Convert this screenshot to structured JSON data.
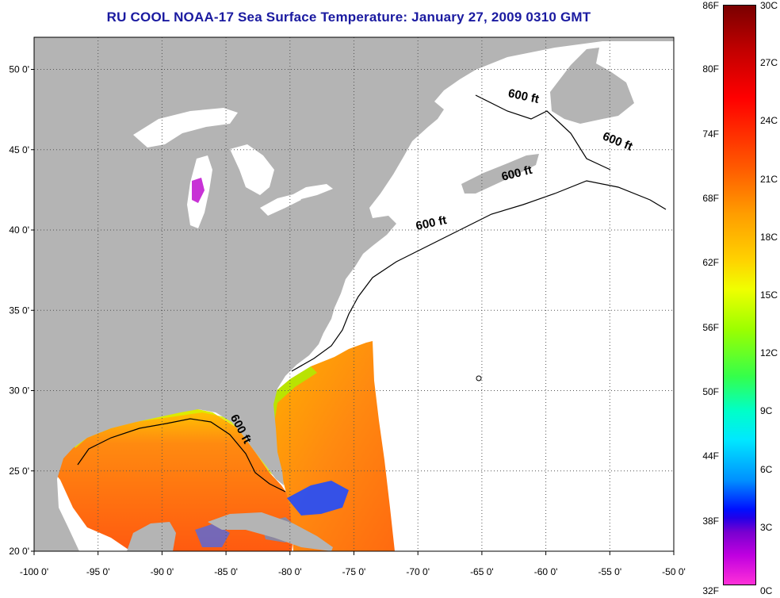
{
  "title": "RU COOL  NOAA-17  Sea Surface Temperature:  January 27, 2009 0310 GMT",
  "map": {
    "lon_min": -100,
    "lon_max": -50,
    "lat_min": 20,
    "lat_max": 52,
    "lon_ticks": [
      {
        "value": -100,
        "label": "-100 0'"
      },
      {
        "value": -95,
        "label": "-95 0'"
      },
      {
        "value": -90,
        "label": "-90 0'"
      },
      {
        "value": -85,
        "label": "-85 0'"
      },
      {
        "value": -80,
        "label": "-80 0'"
      },
      {
        "value": -75,
        "label": "-75 0'"
      },
      {
        "value": -70,
        "label": "-70 0'"
      },
      {
        "value": -65,
        "label": "-65 0'"
      },
      {
        "value": -60,
        "label": "-60 0'"
      },
      {
        "value": -55,
        "label": "-55 0'"
      },
      {
        "value": -50,
        "label": "-50 0'"
      }
    ],
    "lat_ticks": [
      {
        "value": 20,
        "label": "20 0'"
      },
      {
        "value": 25,
        "label": "25 0'"
      },
      {
        "value": 30,
        "label": "30 0'"
      },
      {
        "value": 35,
        "label": "35 0'"
      },
      {
        "value": 40,
        "label": "40 0'"
      },
      {
        "value": 45,
        "label": "45 0'"
      },
      {
        "value": 50,
        "label": "50 0'"
      }
    ],
    "contour_labels": [
      {
        "text": "600 ft",
        "lon": -61.8,
        "lat": 48.1,
        "angle": 12
      },
      {
        "text": "600 ft",
        "lon": -54.5,
        "lat": 45.3,
        "angle": 22
      },
      {
        "text": "600 ft",
        "lon": -62.2,
        "lat": 43.3,
        "angle": -14
      },
      {
        "text": "600 ft",
        "lon": -68.9,
        "lat": 40.2,
        "angle": -12
      },
      {
        "text": "600 ft",
        "lon": -84.1,
        "lat": 27.5,
        "angle": 62
      }
    ],
    "colors": {
      "land": "#b4b4b4",
      "ocean": "#ffffff",
      "sst_warm": "#ff6a10",
      "sst_mid": "#ffb000",
      "sst_cool": "#1f4bff",
      "lake_michigan_sst": "#c832d6"
    }
  },
  "colorbar": {
    "fahrenheit": [
      "86F",
      "80F",
      "74F",
      "68F",
      "62F",
      "56F",
      "50F",
      "44F",
      "38F",
      "32F"
    ],
    "celsius": [
      "30C",
      "27C",
      "24C",
      "21C",
      "18C",
      "15C",
      "12C",
      "9C",
      "6C",
      "3C",
      "0C"
    ]
  }
}
